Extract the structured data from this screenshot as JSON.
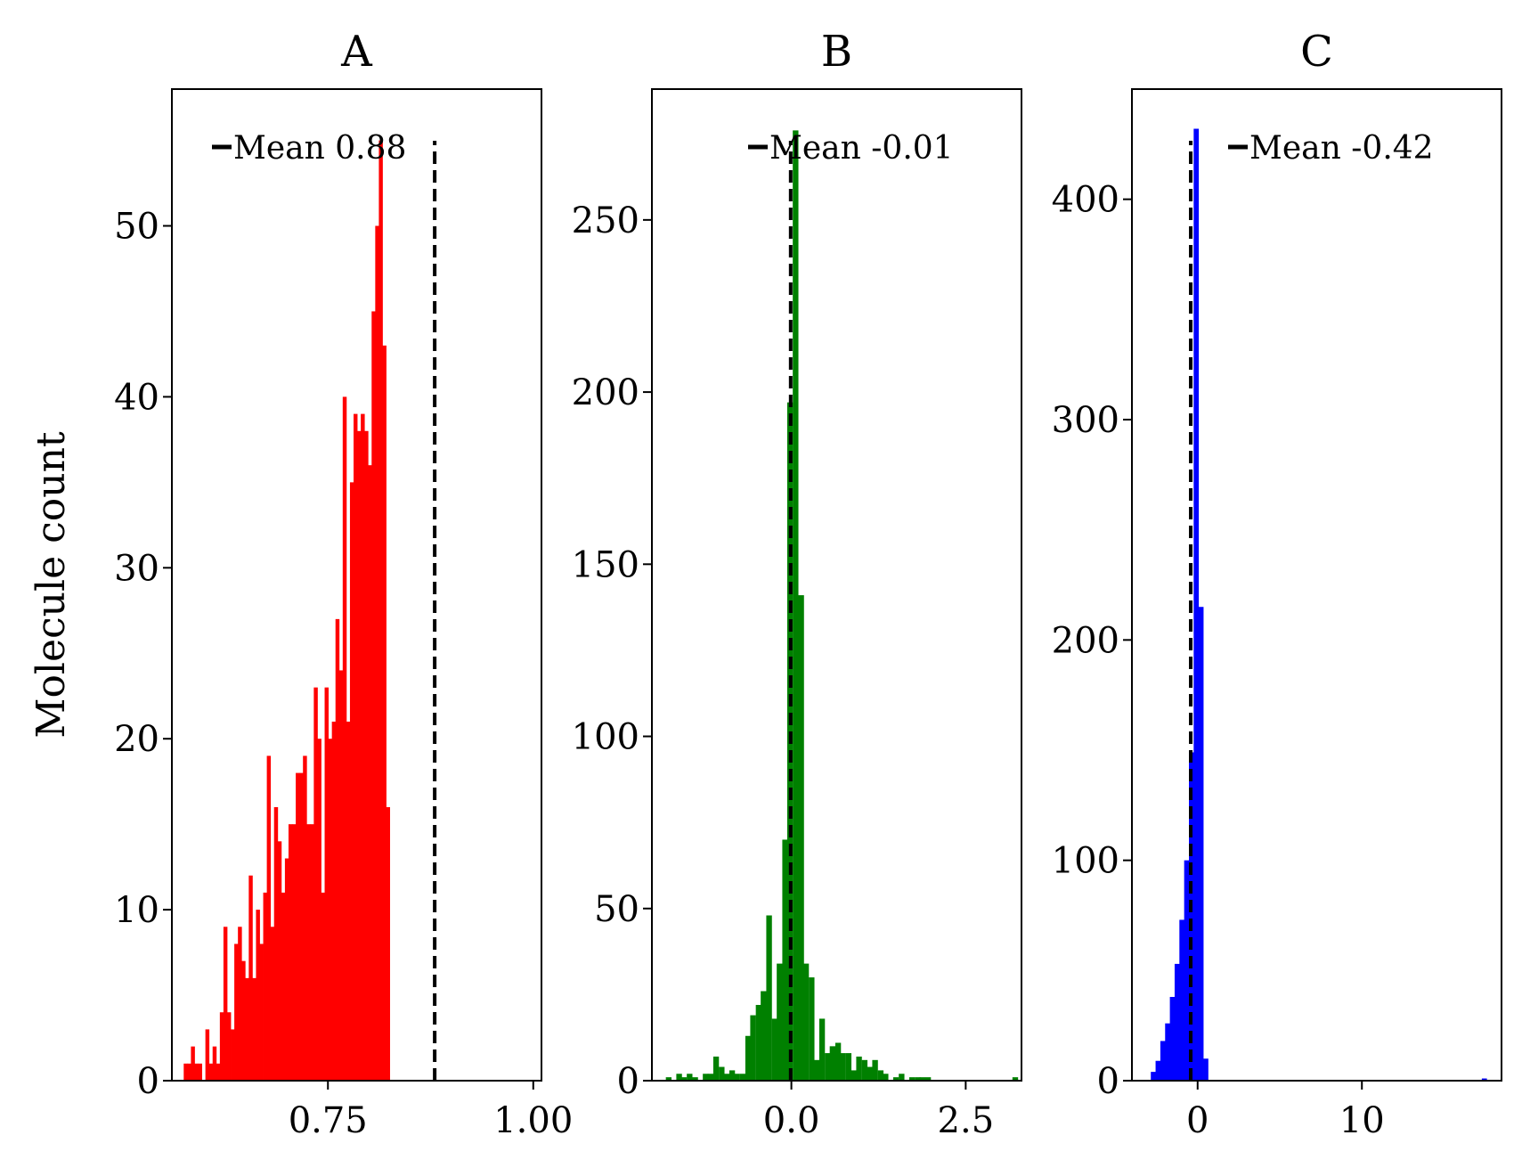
{
  "figure": {
    "ylabel": "Molecule count"
  },
  "chart_data": [
    {
      "type": "bar",
      "title": "A",
      "color": "#ff0000",
      "xlim": [
        0.56,
        1.01
      ],
      "ylim": [
        0,
        58
      ],
      "xticks": [
        0.75,
        1.0
      ],
      "xtick_labels": [
        "0.75",
        "1.00"
      ],
      "yticks": [
        0,
        10,
        20,
        30,
        40,
        50
      ],
      "ytick_labels": [
        "0",
        "10",
        "20",
        "30",
        "40",
        "50"
      ],
      "mean": 0.88,
      "legend_label": "Mean 0.88",
      "legend_position": "upper center",
      "bin_width": 0.0044,
      "bins": [
        {
          "x": 0.5744,
          "count": 1
        },
        {
          "x": 0.5788,
          "count": 1
        },
        {
          "x": 0.5832,
          "count": 2
        },
        {
          "x": 0.5876,
          "count": 1
        },
        {
          "x": 0.592,
          "count": 1
        },
        {
          "x": 0.5964,
          "count": 0
        },
        {
          "x": 0.6008,
          "count": 3
        },
        {
          "x": 0.6052,
          "count": 1
        },
        {
          "x": 0.6096,
          "count": 2
        },
        {
          "x": 0.614,
          "count": 1
        },
        {
          "x": 0.6184,
          "count": 4
        },
        {
          "x": 0.6228,
          "count": 9
        },
        {
          "x": 0.6272,
          "count": 4
        },
        {
          "x": 0.6316,
          "count": 3
        },
        {
          "x": 0.636,
          "count": 8
        },
        {
          "x": 0.6404,
          "count": 9
        },
        {
          "x": 0.6448,
          "count": 7
        },
        {
          "x": 0.6492,
          "count": 6
        },
        {
          "x": 0.6536,
          "count": 12
        },
        {
          "x": 0.658,
          "count": 6
        },
        {
          "x": 0.6624,
          "count": 10
        },
        {
          "x": 0.6668,
          "count": 8
        },
        {
          "x": 0.6712,
          "count": 11
        },
        {
          "x": 0.6756,
          "count": 19
        },
        {
          "x": 0.68,
          "count": 9
        },
        {
          "x": 0.6844,
          "count": 16
        },
        {
          "x": 0.6888,
          "count": 14
        },
        {
          "x": 0.6932,
          "count": 11
        },
        {
          "x": 0.6976,
          "count": 13
        },
        {
          "x": 0.702,
          "count": 15
        },
        {
          "x": 0.7064,
          "count": 15
        },
        {
          "x": 0.7108,
          "count": 18
        },
        {
          "x": 0.7152,
          "count": 18
        },
        {
          "x": 0.7196,
          "count": 19
        },
        {
          "x": 0.724,
          "count": 15
        },
        {
          "x": 0.7284,
          "count": 15
        },
        {
          "x": 0.7328,
          "count": 23
        },
        {
          "x": 0.7372,
          "count": 20
        },
        {
          "x": 0.7416,
          "count": 11
        },
        {
          "x": 0.746,
          "count": 23
        },
        {
          "x": 0.7504,
          "count": 20
        },
        {
          "x": 0.7548,
          "count": 21
        },
        {
          "x": 0.7592,
          "count": 27
        },
        {
          "x": 0.7636,
          "count": 24
        },
        {
          "x": 0.768,
          "count": 40
        },
        {
          "x": 0.7724,
          "count": 21
        },
        {
          "x": 0.7768,
          "count": 35
        },
        {
          "x": 0.7812,
          "count": 39
        },
        {
          "x": 0.7856,
          "count": 38
        },
        {
          "x": 0.79,
          "count": 39
        },
        {
          "x": 0.7944,
          "count": 38
        },
        {
          "x": 0.7988,
          "count": 36
        },
        {
          "x": 0.8032,
          "count": 45
        },
        {
          "x": 0.8076,
          "count": 50
        },
        {
          "x": 0.812,
          "count": 55
        },
        {
          "x": 0.8164,
          "count": 43
        },
        {
          "x": 0.8208,
          "count": 16
        }
      ]
    },
    {
      "type": "bar",
      "title": "B",
      "color": "#008000",
      "xlim": [
        -2.0,
        3.3
      ],
      "ylim": [
        0,
        288
      ],
      "xticks": [
        0.0,
        2.5
      ],
      "xtick_labels": [
        "0.0",
        "2.5"
      ],
      "yticks": [
        0,
        50,
        100,
        150,
        200,
        250
      ],
      "ytick_labels": [
        "0",
        "50",
        "100",
        "150",
        "200",
        "250"
      ],
      "mean": -0.01,
      "legend_label": "Mean -0.01",
      "legend_position": "upper right",
      "bin_width": 0.076,
      "bins": [
        {
          "x": -1.88,
          "count": 0
        },
        {
          "x": -1.8,
          "count": 1
        },
        {
          "x": -1.73,
          "count": 0
        },
        {
          "x": -1.65,
          "count": 2
        },
        {
          "x": -1.58,
          "count": 1
        },
        {
          "x": -1.5,
          "count": 2
        },
        {
          "x": -1.42,
          "count": 1
        },
        {
          "x": -1.35,
          "count": 0
        },
        {
          "x": -1.27,
          "count": 2
        },
        {
          "x": -1.2,
          "count": 2
        },
        {
          "x": -1.12,
          "count": 7
        },
        {
          "x": -1.04,
          "count": 4
        },
        {
          "x": -0.97,
          "count": 2
        },
        {
          "x": -0.89,
          "count": 3
        },
        {
          "x": -0.82,
          "count": 2
        },
        {
          "x": -0.74,
          "count": 2
        },
        {
          "x": -0.66,
          "count": 13
        },
        {
          "x": -0.59,
          "count": 19
        },
        {
          "x": -0.51,
          "count": 22
        },
        {
          "x": -0.44,
          "count": 26
        },
        {
          "x": -0.36,
          "count": 48
        },
        {
          "x": -0.28,
          "count": 18
        },
        {
          "x": -0.21,
          "count": 34
        },
        {
          "x": -0.13,
          "count": 70
        },
        {
          "x": -0.06,
          "count": 197
        },
        {
          "x": 0.02,
          "count": 276
        },
        {
          "x": 0.1,
          "count": 141
        },
        {
          "x": 0.17,
          "count": 34
        },
        {
          "x": 0.25,
          "count": 30
        },
        {
          "x": 0.32,
          "count": 6
        },
        {
          "x": 0.4,
          "count": 18
        },
        {
          "x": 0.48,
          "count": 8
        },
        {
          "x": 0.55,
          "count": 10
        },
        {
          "x": 0.63,
          "count": 11
        },
        {
          "x": 0.7,
          "count": 8
        },
        {
          "x": 0.78,
          "count": 8
        },
        {
          "x": 0.86,
          "count": 3
        },
        {
          "x": 0.93,
          "count": 7
        },
        {
          "x": 1.01,
          "count": 6
        },
        {
          "x": 1.08,
          "count": 4
        },
        {
          "x": 1.16,
          "count": 6
        },
        {
          "x": 1.24,
          "count": 3
        },
        {
          "x": 1.31,
          "count": 2
        },
        {
          "x": 1.39,
          "count": 0
        },
        {
          "x": 1.46,
          "count": 1
        },
        {
          "x": 1.54,
          "count": 2
        },
        {
          "x": 1.62,
          "count": 0
        },
        {
          "x": 1.69,
          "count": 1
        },
        {
          "x": 1.77,
          "count": 1
        },
        {
          "x": 1.84,
          "count": 1
        },
        {
          "x": 1.92,
          "count": 1
        },
        {
          "x": 3.17,
          "count": 1
        }
      ]
    },
    {
      "type": "bar",
      "title": "C",
      "color": "#0000ff",
      "xlim": [
        -4.0,
        18.5
      ],
      "ylim": [
        0,
        450
      ],
      "xticks": [
        0,
        10
      ],
      "xtick_labels": [
        "0",
        "10"
      ],
      "yticks": [
        0,
        100,
        200,
        300,
        400
      ],
      "ytick_labels": [
        "0",
        "100",
        "200",
        "300",
        "400"
      ],
      "mean": -0.42,
      "legend_label": "Mean -0.42",
      "legend_position": "upper right",
      "bin_width": 0.29,
      "bins": [
        {
          "x": -2.85,
          "count": 4
        },
        {
          "x": -2.56,
          "count": 9
        },
        {
          "x": -2.27,
          "count": 18
        },
        {
          "x": -1.98,
          "count": 26
        },
        {
          "x": -1.69,
          "count": 38
        },
        {
          "x": -1.4,
          "count": 53
        },
        {
          "x": -1.11,
          "count": 73
        },
        {
          "x": -0.82,
          "count": 100
        },
        {
          "x": -0.53,
          "count": 149
        },
        {
          "x": -0.24,
          "count": 432
        },
        {
          "x": 0.05,
          "count": 215
        },
        {
          "x": 0.34,
          "count": 10
        },
        {
          "x": 17.3,
          "count": 1
        }
      ]
    }
  ]
}
